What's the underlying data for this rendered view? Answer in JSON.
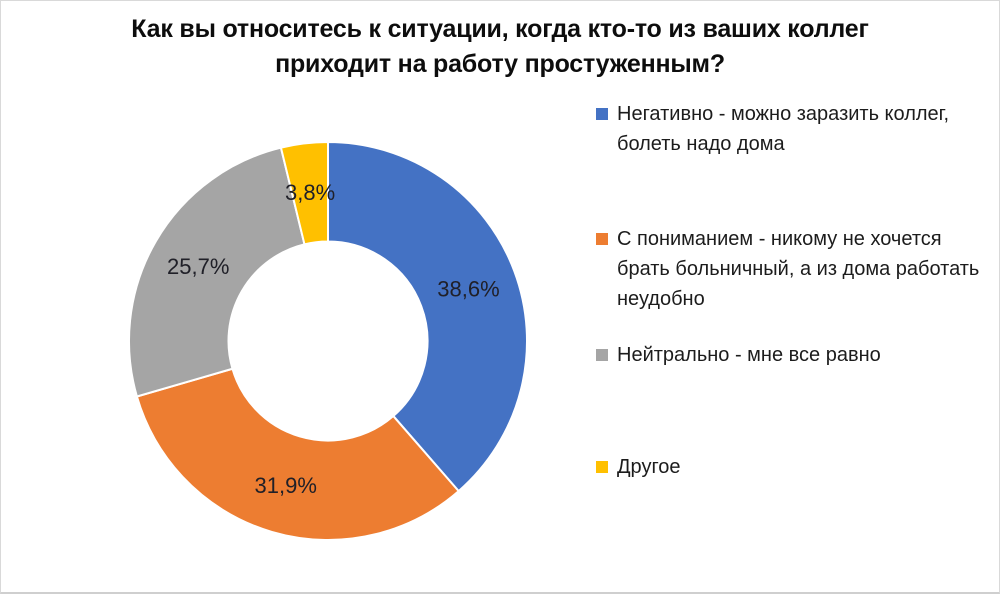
{
  "page": {
    "background": "#ffffff",
    "frame_border_color": "#d9d9d9"
  },
  "chart": {
    "title": "Как вы относитесь к ситуации, когда кто-то из ваших коллег\nприходит на работу простуженным?"
  },
  "chart_data": {
    "type": "pie",
    "subtype": "donut",
    "title": "Как вы относитесь к ситуации, когда кто-то из ваших коллег приходит на работу простуженным?",
    "categories": [
      "Негативно - можно заразить коллег, болеть надо дома",
      "С пониманием - никому не хочется брать больничный, а из дома работать неудобно",
      "Нейтрально - мне все равно",
      "Другое"
    ],
    "values": [
      38.6,
      31.9,
      25.7,
      3.8
    ],
    "labels": [
      "38,6%",
      "31,9%",
      "25,7%",
      "3,8%"
    ],
    "colors": [
      "#4472c4",
      "#ed7d31",
      "#a5a5a5",
      "#ffc000"
    ],
    "start_angle_deg": 0,
    "direction": "clockwise",
    "donut_hole_ratio": 0.5,
    "slice_border_color": "#ffffff",
    "label_color": "#202028",
    "legend_position": "right"
  },
  "legend": {
    "items": [
      {
        "label": "Негативно - можно заразить коллег, болеть надо дома",
        "color": "#4472c4"
      },
      {
        "label": "С пониманием - никому не хочется брать больничный, а из дома работать неудобно",
        "color": "#ed7d31"
      },
      {
        "label": "Нейтрально - мне все равно",
        "color": "#a5a5a5"
      },
      {
        "label": "Другое",
        "color": "#ffc000"
      }
    ]
  }
}
